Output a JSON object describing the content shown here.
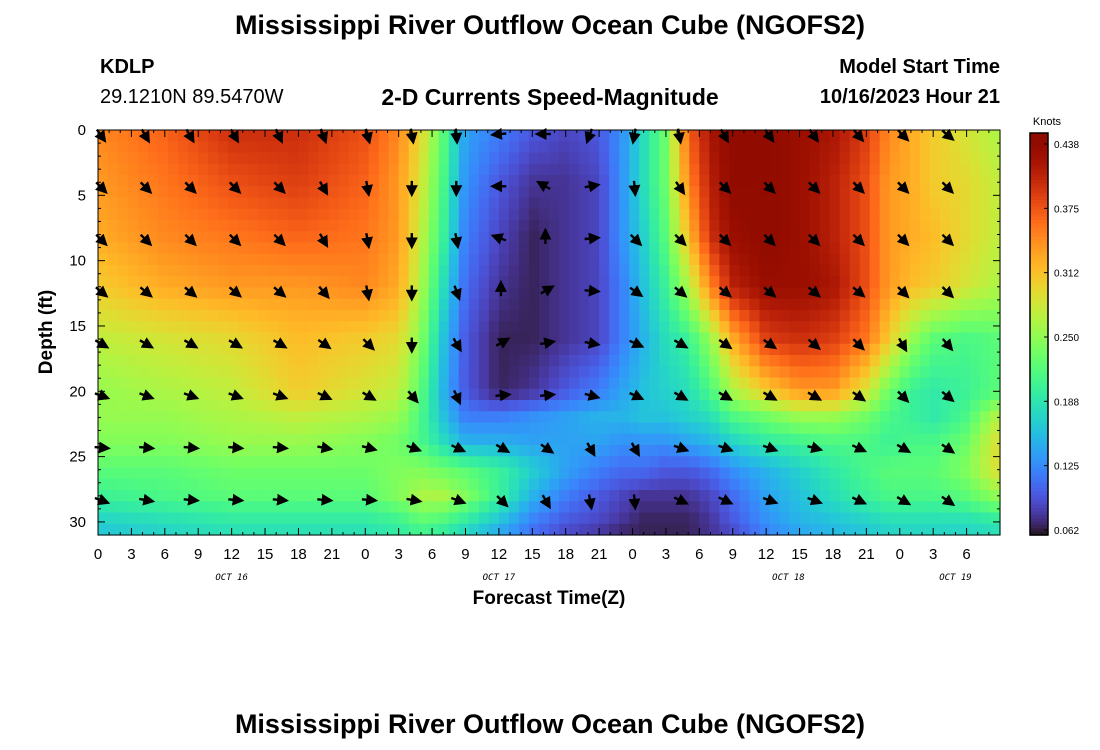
{
  "header": {
    "title": "Mississippi River Outflow Ocean Cube (NGOFS2)",
    "station": "KDLP",
    "coordinates": "29.1210N  89.5470W",
    "subtitle": "2-D Currents Speed-Magnitude",
    "model_start_label": "Model Start Time",
    "model_start_value": "10/16/2023 Hour 21"
  },
  "footer": {
    "title": "Mississippi River Outflow Ocean Cube (NGOFS2)"
  },
  "chart_data": {
    "type": "heatmap",
    "xlabel": "Forecast Time(Z)",
    "ylabel": "Depth (ft)",
    "x_hours_range": [
      0,
      81
    ],
    "ylim": [
      0,
      31
    ],
    "y_inverted": true,
    "x_tick_labels": [
      "0",
      "3",
      "6",
      "9",
      "12",
      "15",
      "18",
      "21",
      "0",
      "3",
      "6",
      "9",
      "12",
      "15",
      "18",
      "21",
      "0",
      "3",
      "6",
      "9",
      "12",
      "15",
      "18",
      "21",
      "0",
      "3",
      "6"
    ],
    "y_ticks": [
      0,
      5,
      10,
      15,
      20,
      25,
      30
    ],
    "date_labels": [
      {
        "label": "OCT 16",
        "hour": 12
      },
      {
        "label": "OCT 17",
        "hour": 36
      },
      {
        "label": "OCT 18",
        "hour": 62
      },
      {
        "label": "OCT 19",
        "hour": 77
      }
    ],
    "colorbar": {
      "title": "Knots",
      "min": 0.062,
      "max": 0.438,
      "tick_labels": [
        "0.438",
        "0.375",
        "0.312",
        "0.250",
        "0.188",
        "0.125",
        "0.062"
      ],
      "colormap": "turbo"
    },
    "speed_field_knots": {
      "x_hours": [
        0,
        6,
        12,
        18,
        24,
        27,
        29,
        31,
        33,
        36,
        39,
        42,
        45,
        47,
        49,
        51,
        53,
        55,
        57,
        60,
        63,
        66,
        69,
        71,
        73,
        75,
        78,
        81
      ],
      "depth_ft": [
        0,
        4,
        8,
        12,
        16,
        20,
        22,
        24,
        26,
        28,
        30,
        31
      ],
      "values": [
        [
          0.34,
          0.36,
          0.39,
          0.39,
          0.37,
          0.34,
          0.29,
          0.22,
          0.14,
          0.12,
          0.1,
          0.09,
          0.1,
          0.13,
          0.18,
          0.23,
          0.36,
          0.41,
          0.43,
          0.43,
          0.42,
          0.41,
          0.38,
          0.34,
          0.32,
          0.3,
          0.28,
          0.26
        ],
        [
          0.33,
          0.35,
          0.37,
          0.38,
          0.36,
          0.33,
          0.28,
          0.21,
          0.13,
          0.1,
          0.08,
          0.08,
          0.09,
          0.13,
          0.18,
          0.23,
          0.34,
          0.4,
          0.43,
          0.43,
          0.42,
          0.4,
          0.37,
          0.33,
          0.32,
          0.3,
          0.29,
          0.27
        ],
        [
          0.32,
          0.34,
          0.35,
          0.36,
          0.35,
          0.33,
          0.27,
          0.2,
          0.12,
          0.09,
          0.07,
          0.08,
          0.09,
          0.13,
          0.17,
          0.22,
          0.31,
          0.39,
          0.42,
          0.43,
          0.42,
          0.4,
          0.37,
          0.33,
          0.32,
          0.31,
          0.29,
          0.27
        ],
        [
          0.3,
          0.32,
          0.33,
          0.33,
          0.34,
          0.32,
          0.26,
          0.18,
          0.11,
          0.08,
          0.07,
          0.08,
          0.09,
          0.12,
          0.16,
          0.2,
          0.26,
          0.34,
          0.4,
          0.42,
          0.42,
          0.41,
          0.37,
          0.33,
          0.31,
          0.3,
          0.28,
          0.26
        ],
        [
          0.27,
          0.28,
          0.29,
          0.31,
          0.3,
          0.29,
          0.24,
          0.16,
          0.1,
          0.07,
          0.07,
          0.08,
          0.09,
          0.12,
          0.15,
          0.18,
          0.2,
          0.25,
          0.32,
          0.38,
          0.39,
          0.38,
          0.35,
          0.3,
          0.25,
          0.22,
          0.21,
          0.22
        ],
        [
          0.25,
          0.26,
          0.27,
          0.3,
          0.28,
          0.27,
          0.22,
          0.15,
          0.1,
          0.07,
          0.08,
          0.1,
          0.12,
          0.14,
          0.16,
          0.17,
          0.18,
          0.21,
          0.26,
          0.3,
          0.33,
          0.33,
          0.28,
          0.23,
          0.2,
          0.19,
          0.2,
          0.22
        ],
        [
          0.25,
          0.25,
          0.26,
          0.27,
          0.26,
          0.25,
          0.21,
          0.16,
          0.12,
          0.12,
          0.13,
          0.14,
          0.15,
          0.15,
          0.16,
          0.16,
          0.17,
          0.18,
          0.21,
          0.23,
          0.25,
          0.25,
          0.23,
          0.21,
          0.2,
          0.19,
          0.21,
          0.27
        ],
        [
          0.24,
          0.24,
          0.25,
          0.25,
          0.24,
          0.23,
          0.21,
          0.18,
          0.15,
          0.15,
          0.14,
          0.14,
          0.14,
          0.13,
          0.13,
          0.13,
          0.14,
          0.15,
          0.17,
          0.19,
          0.2,
          0.21,
          0.21,
          0.2,
          0.21,
          0.21,
          0.23,
          0.29
        ],
        [
          0.22,
          0.22,
          0.23,
          0.23,
          0.23,
          0.24,
          0.24,
          0.23,
          0.22,
          0.2,
          0.17,
          0.14,
          0.12,
          0.11,
          0.11,
          0.1,
          0.1,
          0.11,
          0.13,
          0.15,
          0.17,
          0.19,
          0.21,
          0.22,
          0.22,
          0.22,
          0.24,
          0.29
        ],
        [
          0.2,
          0.21,
          0.22,
          0.22,
          0.22,
          0.24,
          0.26,
          0.26,
          0.24,
          0.2,
          0.15,
          0.12,
          0.1,
          0.09,
          0.08,
          0.08,
          0.08,
          0.09,
          0.11,
          0.14,
          0.16,
          0.18,
          0.2,
          0.21,
          0.21,
          0.21,
          0.22,
          0.25
        ],
        [
          0.17,
          0.18,
          0.19,
          0.19,
          0.19,
          0.2,
          0.22,
          0.21,
          0.19,
          0.16,
          0.12,
          0.1,
          0.09,
          0.08,
          0.07,
          0.07,
          0.07,
          0.08,
          0.1,
          0.13,
          0.15,
          0.16,
          0.17,
          0.18,
          0.18,
          0.18,
          0.18,
          0.19
        ],
        [
          0.16,
          0.17,
          0.18,
          0.18,
          0.18,
          0.19,
          0.2,
          0.19,
          0.17,
          0.14,
          0.11,
          0.09,
          0.08,
          0.07,
          0.07,
          0.07,
          0.07,
          0.08,
          0.09,
          0.12,
          0.14,
          0.15,
          0.16,
          0.17,
          0.17,
          0.17,
          0.17,
          0.18
        ]
      ]
    },
    "vectors": {
      "x_hours": [
        0,
        4,
        8,
        12,
        16,
        20,
        24,
        28,
        32,
        36,
        40,
        44,
        48,
        52,
        56,
        60,
        64,
        68,
        72,
        76
      ],
      "depth_ft": [
        0,
        4,
        8,
        12,
        16,
        20,
        24,
        28
      ],
      "direction_deg": [
        [
          145,
          150,
          150,
          150,
          155,
          160,
          165,
          170,
          175,
          265,
          270,
          200,
          190,
          170,
          150,
          145,
          145,
          140,
          135,
          130
        ],
        [
          135,
          135,
          135,
          135,
          135,
          150,
          170,
          180,
          180,
          270,
          300,
          80,
          175,
          145,
          135,
          135,
          135,
          135,
          135,
          135
        ],
        [
          135,
          135,
          135,
          135,
          135,
          150,
          170,
          180,
          170,
          290,
          0,
          85,
          135,
          135,
          135,
          135,
          135,
          135,
          135,
          135
        ],
        [
          130,
          130,
          130,
          130,
          130,
          140,
          170,
          180,
          160,
          0,
          60,
          95,
          125,
          130,
          130,
          130,
          130,
          130,
          135,
          135
        ],
        [
          120,
          120,
          120,
          120,
          120,
          125,
          135,
          180,
          150,
          60,
          80,
          100,
          115,
          120,
          125,
          125,
          130,
          135,
          150,
          140
        ],
        [
          110,
          110,
          110,
          110,
          110,
          115,
          120,
          140,
          155,
          85,
          85,
          105,
          115,
          120,
          120,
          120,
          120,
          125,
          135,
          130
        ],
        [
          95,
          95,
          95,
          95,
          95,
          100,
          105,
          110,
          115,
          120,
          125,
          150,
          150,
          110,
          110,
          110,
          105,
          115,
          120,
          125
        ],
        [
          110,
          100,
          95,
          95,
          95,
          95,
          95,
          100,
          110,
          135,
          150,
          170,
          175,
          115,
          115,
          110,
          110,
          115,
          120,
          125
        ]
      ]
    }
  }
}
